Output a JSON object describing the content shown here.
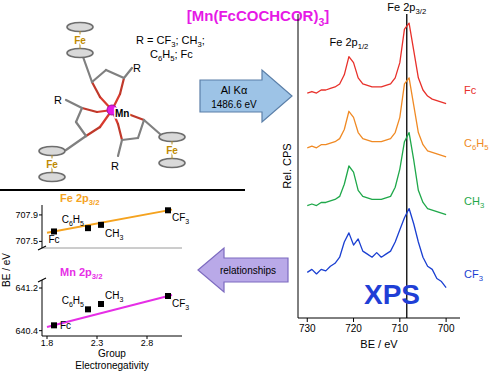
{
  "title": "[Mn(FcCOCHCOR)3]",
  "structure": {
    "center": "Mn",
    "iron_labels": [
      "Fe",
      "Fe",
      "Fe"
    ],
    "r_labels": [
      "R",
      "R",
      "R"
    ],
    "r_definition": [
      "R = CF3; CH3;",
      "C6H5; Fc"
    ]
  },
  "arrows": {
    "excitation": [
      "Al Kα",
      "1486.6 eV"
    ],
    "back": "relationships"
  },
  "chart_data": [
    {
      "type": "line",
      "label": "XPS",
      "color": "#1f3fd6",
      "xlabel": "BE / eV",
      "ylabel": "Rel. CPS",
      "x": [
        730,
        729,
        728,
        727,
        726,
        725,
        724,
        723,
        722,
        721,
        720,
        719,
        718,
        717,
        716,
        715,
        714,
        713,
        712,
        711,
        710,
        709,
        708,
        707,
        706,
        705,
        704,
        703,
        702,
        701,
        700
      ],
      "xlim": [
        732,
        697
      ],
      "xticks": [
        730,
        720,
        710,
        700
      ],
      "ylim": [
        0,
        100
      ],
      "tick_labels": "x",
      "vline": 708.5,
      "annotations": [
        {
          "text": "Fe 2p1/2",
          "x": 721
        },
        {
          "text": "Fe 2p3/2",
          "x": 708.5
        }
      ],
      "series": [
        {
          "name": "Fc",
          "color": "#e8302a",
          "values": [
            74,
            74.5,
            74,
            75,
            75,
            75.5,
            76,
            77,
            80,
            86,
            84,
            79,
            77,
            76.5,
            76,
            76,
            76,
            76.5,
            77,
            79,
            84,
            95,
            97,
            88,
            79,
            75,
            73,
            72,
            71.5,
            71,
            70.5
          ]
        },
        {
          "name": "C6H5",
          "color": "#f08a24",
          "values": [
            56,
            56.5,
            56,
            57,
            57,
            57.5,
            58,
            59,
            62,
            68,
            66,
            61,
            59,
            58.5,
            58,
            58,
            58,
            58.5,
            59,
            61,
            66,
            77,
            79,
            70,
            61,
            57,
            55,
            54.5,
            54,
            53.5,
            53
          ]
        },
        {
          "name": "CH3",
          "color": "#1fa84a",
          "values": [
            37,
            37.5,
            37,
            38,
            38,
            38.5,
            39,
            40,
            44,
            50,
            48,
            42,
            40,
            39.5,
            39,
            39,
            39,
            39.5,
            40,
            43,
            49,
            58,
            61,
            52,
            42,
            38,
            36,
            35.5,
            35,
            34.5,
            34
          ]
        },
        {
          "name": "CF3",
          "color": "#1a3fd1",
          "values": [
            15,
            16,
            14.5,
            16,
            15.5,
            17,
            18,
            20,
            25,
            28,
            24,
            26,
            22,
            21,
            20,
            21.5,
            20,
            21,
            22,
            25,
            29,
            33,
            36,
            31,
            25,
            20,
            17,
            16,
            13,
            12,
            10
          ]
        }
      ]
    },
    {
      "type": "scatter",
      "title": "Fe 2p3/2",
      "ylabel": "BE / eV",
      "color": "#f5a31f",
      "marker": "square",
      "x": [
        1.87,
        2.21,
        2.34,
        3.01
      ],
      "values": [
        707.65,
        707.7,
        707.75,
        707.97
      ],
      "point_labels": [
        "Fc",
        "C6H5",
        "CH3",
        "CF3"
      ],
      "xlim": [
        1.75,
        3.15
      ],
      "xticks": [
        1.8,
        2.3,
        2.8
      ],
      "ylim": [
        707.4,
        708.05
      ],
      "yticks": [
        707.5,
        707.9
      ],
      "tick_labels": "y",
      "trend": {
        "x": [
          1.8,
          3.05
        ],
        "values": [
          707.63,
          707.98
        ]
      }
    },
    {
      "type": "scatter",
      "title": "Mn 2p3/2",
      "xlabel": "Group Electronegativity",
      "color": "#e62ee6",
      "marker": "square",
      "x": [
        1.87,
        2.21,
        2.34,
        3.01
      ],
      "values": [
        640.5,
        640.8,
        640.9,
        641.05
      ],
      "point_labels": [
        "Fc",
        "C6H5",
        "CH3",
        "CF3"
      ],
      "xlim": [
        1.75,
        3.15
      ],
      "xticks": [
        1.8,
        2.3,
        2.8
      ],
      "ylim": [
        640.3,
        641.35
      ],
      "yticks": [
        640.4,
        641.2
      ],
      "trend": {
        "x": [
          1.8,
          3.05
        ],
        "values": [
          640.47,
          641.07
        ]
      }
    }
  ]
}
